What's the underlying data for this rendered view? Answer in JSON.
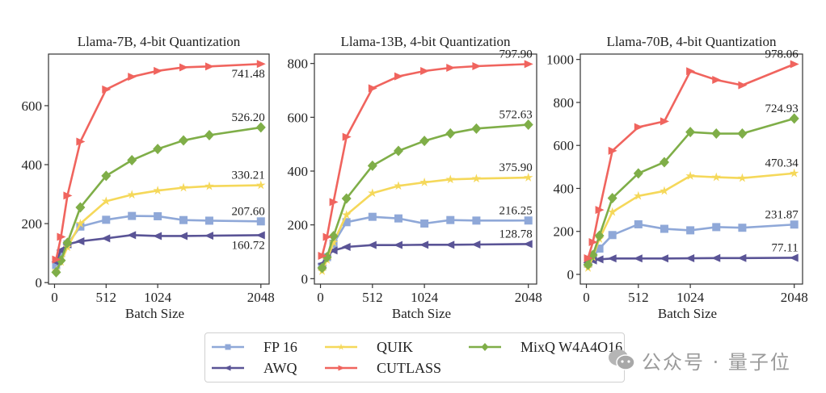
{
  "legend": {
    "items": [
      {
        "label": "FP 16",
        "series": "FP16"
      },
      {
        "label": "AWQ",
        "series": "AWQ"
      },
      {
        "label": "QUIK",
        "series": "QUIK"
      },
      {
        "label": "CUTLASS",
        "series": "CUTLASS"
      },
      {
        "label": "MixQ W4A4O16",
        "series": "MixQ"
      }
    ]
  },
  "watermark": {
    "text": "公众号 · 量子位",
    "icon": "wechat-icon"
  },
  "colors": {
    "FP16": "#8fa8d8",
    "AWQ": "#5a5496",
    "QUIK": "#f5d85a",
    "CUTLASS": "#f0645e",
    "MixQ": "#7fae48"
  },
  "markers": {
    "FP16": "square",
    "AWQ": "triangle-left",
    "QUIK": "star",
    "CUTLASS": "triangle-right",
    "MixQ": "diamond"
  },
  "chart_data": [
    {
      "type": "line",
      "title": "Llama-7B, 4-bit Quantization",
      "xlabel": "Batch Size",
      "ylabel": "",
      "x": [
        16,
        64,
        128,
        256,
        512,
        768,
        1024,
        1280,
        1536,
        2048
      ],
      "xticks": [
        0,
        512,
        1024,
        2048
      ],
      "yticks": [
        0,
        200,
        400,
        600
      ],
      "xlim": [
        -60,
        2130
      ],
      "ylim": [
        -5,
        775
      ],
      "grid": false,
      "series": [
        {
          "name": "FP16",
          "values": [
            60,
            100,
            130,
            190,
            213,
            226,
            225,
            212,
            210,
            207.6
          ],
          "label": "207.60",
          "label_pos": "above"
        },
        {
          "name": "AWQ",
          "values": [
            70,
            110,
            130,
            140,
            150,
            161,
            158,
            158,
            159,
            160.72
          ],
          "label": "160.72",
          "label_pos": "below"
        },
        {
          "name": "QUIK",
          "values": [
            40,
            70,
            120,
            200,
            276,
            298,
            312,
            322,
            327,
            330.21
          ],
          "label": "330.21",
          "label_pos": "above"
        },
        {
          "name": "CUTLASS",
          "values": [
            78,
            155,
            295,
            478,
            655,
            698,
            718,
            730,
            733,
            741.48
          ],
          "label": "741.48",
          "label_pos": "below"
        },
        {
          "name": "MixQ",
          "values": [
            35,
            75,
            135,
            255,
            362,
            415,
            453,
            482,
            500,
            526.2
          ],
          "label": "526.20",
          "label_pos": "above"
        }
      ]
    },
    {
      "type": "line",
      "title": "Llama-13B, 4-bit Quantization",
      "xlabel": "Batch Size",
      "ylabel": "",
      "x": [
        16,
        64,
        128,
        256,
        512,
        768,
        1024,
        1280,
        1536,
        2048
      ],
      "xticks": [
        0,
        512,
        1024,
        2048
      ],
      "yticks": [
        0,
        200,
        400,
        600,
        800
      ],
      "xlim": [
        -60,
        2130
      ],
      "ylim": [
        -20,
        835
      ],
      "grid": false,
      "series": [
        {
          "name": "FP16",
          "values": [
            45,
            80,
            130,
            210,
            230,
            224,
            205,
            218,
            216,
            216.25
          ],
          "label": "216.25",
          "label_pos": "above"
        },
        {
          "name": "AWQ",
          "values": [
            55,
            85,
            105,
            118,
            125,
            125,
            126,
            126,
            127,
            128.78
          ],
          "label": "128.78",
          "label_pos": "above"
        },
        {
          "name": "QUIK",
          "values": [
            28,
            70,
            135,
            237,
            318,
            345,
            358,
            369,
            372,
            375.9
          ],
          "label": "375.90",
          "label_pos": "above"
        },
        {
          "name": "CUTLASS",
          "values": [
            85,
            155,
            285,
            527,
            708,
            752,
            772,
            784,
            790,
            797.9
          ],
          "label": "797.90",
          "label_pos": "above"
        },
        {
          "name": "MixQ",
          "values": [
            40,
            80,
            158,
            298,
            420,
            475,
            512,
            540,
            558,
            572.63
          ],
          "label": "572.63",
          "label_pos": "above"
        }
      ]
    },
    {
      "type": "line",
      "title": "Llama-70B, 4-bit Quantization",
      "xlabel": "Batch Size",
      "ylabel": "",
      "x": [
        16,
        64,
        128,
        256,
        512,
        768,
        1024,
        1280,
        1536,
        2048
      ],
      "xticks": [
        0,
        512,
        1024,
        2048
      ],
      "yticks": [
        0,
        200,
        400,
        600,
        800,
        1000
      ],
      "xlim": [
        -60,
        2130
      ],
      "ylim": [
        -45,
        1025
      ],
      "grid": false,
      "series": [
        {
          "name": "FP16",
          "values": [
            50,
            80,
            120,
            183,
            233,
            212,
            205,
            220,
            217,
            231.87
          ],
          "label": "231.87",
          "label_pos": "above"
        },
        {
          "name": "AWQ",
          "values": [
            55,
            65,
            70,
            74,
            74,
            74,
            75,
            76,
            76,
            77.11
          ],
          "label": "77.11",
          "label_pos": "above"
        },
        {
          "name": "QUIK",
          "values": [
            30,
            80,
            165,
            290,
            365,
            388,
            458,
            452,
            448,
            470.34
          ],
          "label": "470.34",
          "label_pos": "above"
        },
        {
          "name": "CUTLASS",
          "values": [
            75,
            150,
            300,
            575,
            685,
            712,
            945,
            905,
            880,
            978.06
          ],
          "label": "978.06",
          "label_pos": "above"
        },
        {
          "name": "MixQ",
          "values": [
            45,
            90,
            180,
            355,
            470,
            522,
            662,
            655,
            655,
            724.93
          ],
          "label": "724.93",
          "label_pos": "above"
        }
      ]
    }
  ]
}
